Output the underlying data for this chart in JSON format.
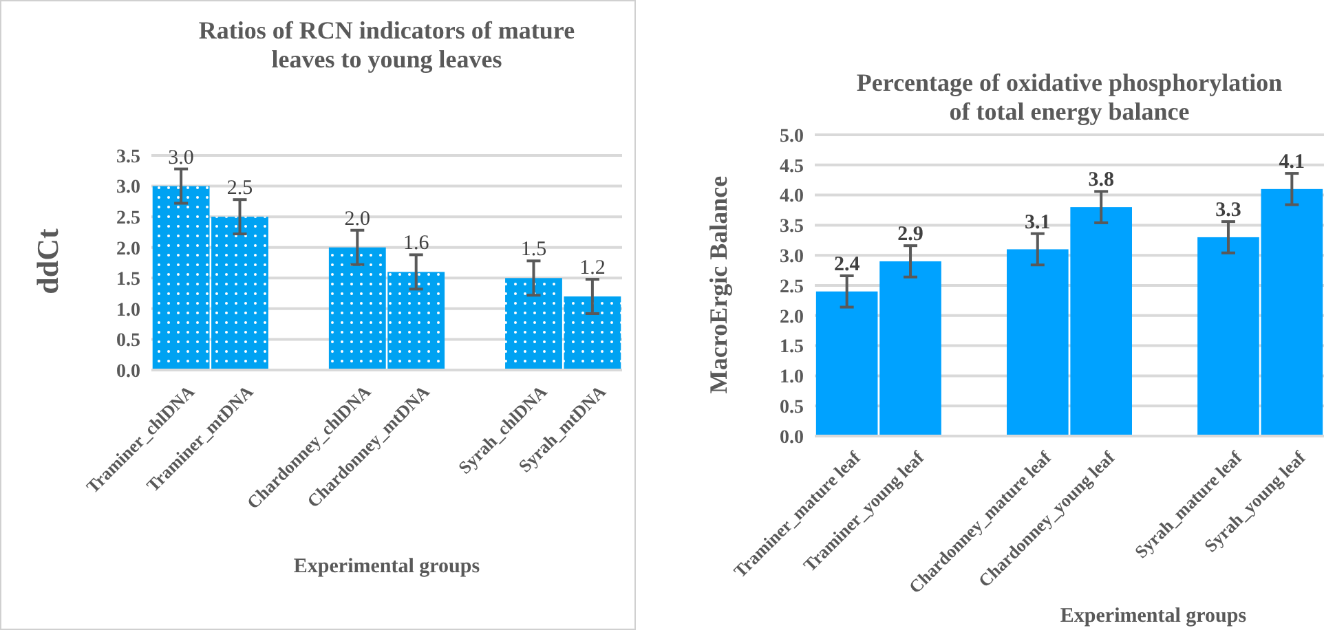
{
  "chart_data": [
    {
      "type": "bar",
      "title": "Ratios of RCN indicators of mature leaves to young leaves",
      "xlabel": "Experimental groups",
      "ylabel": "ddCt",
      "categories": [
        "Traminer_chlDNA",
        "Traminer_mtDNA",
        null,
        "Chardonney_chlDNA",
        "Chardonney_mtDNA",
        null,
        "Syrah_chlDNA",
        "Syrah_mtDNA"
      ],
      "values": [
        3.0,
        2.5,
        null,
        2.0,
        1.6,
        null,
        1.5,
        1.2
      ],
      "errors": [
        0.28,
        0.28,
        null,
        0.28,
        0.28,
        null,
        0.28,
        0.28
      ],
      "color": "#00a2f2",
      "ylim": [
        0,
        3.5
      ],
      "yticks": [
        {
          "value": 0,
          "label": "0.0"
        },
        {
          "value": 0.5,
          "label": "0.5"
        },
        {
          "value": 1,
          "label": "1.0"
        },
        {
          "value": 1.5,
          "label": "1.5"
        },
        {
          "value": 2,
          "label": "2.0"
        },
        {
          "value": 2.5,
          "label": "2.5"
        },
        {
          "value": 3,
          "label": "3.0"
        },
        {
          "value": 3.5,
          "label": "3.5"
        }
      ],
      "grid": "y",
      "value_labels": [
        "3.0",
        "2.5",
        null,
        "2.0",
        "1.6",
        null,
        "1.5",
        "1.2"
      ]
    },
    {
      "type": "bar",
      "title": "Percentage of oxidative phosphorylation of total energy balance",
      "xlabel": "Experimental groups",
      "ylabel": "MacroErgic Balance",
      "categories": [
        "Traminer_mature leaf",
        "Traminer_young leaf",
        null,
        "Chardonney_mature leaf",
        "Chardonney_young leaf",
        null,
        "Syrah_mature leaf",
        "Syrah_young leaf"
      ],
      "values": [
        2.4,
        2.9,
        null,
        3.1,
        3.8,
        null,
        3.3,
        4.1
      ],
      "errors": [
        0.26,
        0.26,
        null,
        0.26,
        0.26,
        null,
        0.26,
        0.26
      ],
      "color": "#00a2ff",
      "ylim": [
        0,
        5
      ],
      "yticks": [
        {
          "value": 0,
          "label": "0.0"
        },
        {
          "value": 0.5,
          "label": "0.5"
        },
        {
          "value": 1,
          "label": "1.0"
        },
        {
          "value": 1.5,
          "label": "1.5"
        },
        {
          "value": 2,
          "label": "2.0"
        },
        {
          "value": 2.5,
          "label": "2.5"
        },
        {
          "value": 3,
          "label": "3.0"
        },
        {
          "value": 3.5,
          "label": "3.5"
        },
        {
          "value": 4,
          "label": "4.0"
        },
        {
          "value": 4.5,
          "label": "4.5"
        },
        {
          "value": 5,
          "label": "5.0"
        }
      ],
      "grid": "y",
      "value_labels": [
        "2.4",
        "2.9",
        null,
        "3.1",
        "3.8",
        null,
        "3.3",
        "4.1"
      ]
    }
  ]
}
